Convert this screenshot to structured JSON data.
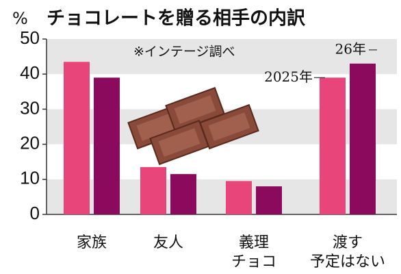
{
  "chart_data": {
    "type": "bar",
    "title": "チョコレートを贈る相手の内訳",
    "y_label": "%",
    "annotation": "※インテージ調べ",
    "categories": [
      [
        "家族"
      ],
      [
        "友人"
      ],
      [
        "義理",
        "チョコ"
      ],
      [
        "渡す",
        "予定はない"
      ]
    ],
    "series": [
      {
        "name": "2025年",
        "color": "#e8457a",
        "values": [
          43.5,
          13.5,
          9.5,
          39
        ]
      },
      {
        "name": "26年",
        "color": "#8b0a5e",
        "values": [
          39,
          11.5,
          8,
          43
        ]
      }
    ],
    "ylim": [
      0,
      50
    ],
    "yticks": [
      0,
      10,
      20,
      30,
      40,
      50
    ],
    "grid": true
  }
}
